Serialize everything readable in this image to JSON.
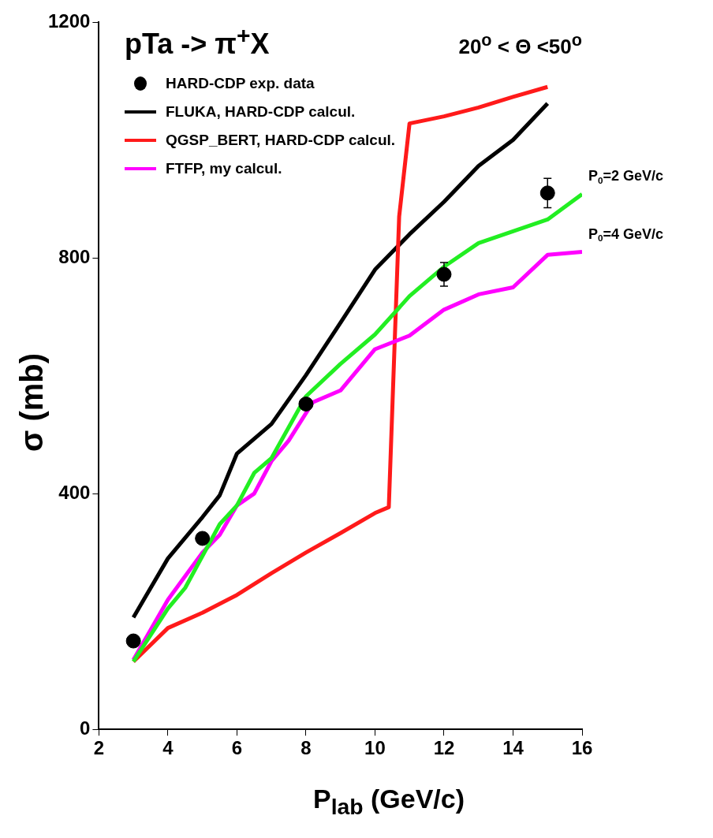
{
  "chart_data": {
    "type": "line",
    "title": "pTa -> π$^{+}$X",
    "subtitle": "20$^{o}$ < Θ <50$^{o}$",
    "xlabel": "P$_{lab}$ (GeV/c)",
    "ylabel": "σ (mb)",
    "xlim": [
      2,
      16
    ],
    "xticks": [
      2,
      4,
      6,
      8,
      10,
      12,
      14,
      16
    ],
    "ylim": [
      0,
      1200
    ],
    "yticks": [
      0,
      400,
      800,
      1200
    ],
    "grid": false,
    "legend": "top left",
    "series": [
      {
        "name": "HARD-CDP exp. data",
        "type": "scatter",
        "marker": "circle",
        "color": "#000000",
        "x": [
          3,
          5,
          8,
          12,
          15
        ],
        "values": [
          150,
          324,
          552,
          772,
          910
        ],
        "errors": [
          null,
          null,
          null,
          20,
          25
        ]
      },
      {
        "name": "FLUKA, HARD-CDP calcul.",
        "color": "#000000",
        "x": [
          3,
          4,
          5,
          5.5,
          6,
          7,
          8,
          9,
          10,
          11,
          12,
          13,
          14,
          15
        ],
        "values": [
          190,
          290,
          360,
          397,
          468,
          518,
          601,
          690,
          780,
          840,
          895,
          956,
          1000,
          1062
        ]
      },
      {
        "name": "QGSP_BERT, HARD-CDP calcul.",
        "color": "#ff1a1a",
        "x": [
          3,
          4,
          5,
          6,
          7,
          8,
          9,
          10,
          10.4,
          10.7,
          11,
          12,
          13,
          14,
          15
        ],
        "values": [
          115,
          172,
          198,
          228,
          265,
          300,
          333,
          367,
          377,
          870,
          1028,
          1040,
          1055,
          1073,
          1090
        ]
      },
      {
        "name": "FTFP, my calcul.",
        "color": "#ff00ff",
        "x": [
          3,
          4,
          5,
          5.5,
          6,
          6.5,
          7,
          7.5,
          8.2,
          9,
          10,
          11,
          12,
          13,
          14,
          15,
          16
        ],
        "values": [
          118,
          220,
          300,
          330,
          380,
          400,
          455,
          490,
          555,
          575,
          645,
          668,
          712,
          738,
          750,
          805,
          810
        ]
      },
      {
        "color": "#22ee22",
        "x": [
          3,
          4,
          4.5,
          5.5,
          6,
          6.5,
          7,
          8,
          9,
          10,
          11,
          12,
          13,
          14,
          15,
          16
        ],
        "values": [
          115,
          205,
          240,
          348,
          380,
          435,
          460,
          565,
          620,
          670,
          735,
          785,
          825,
          845,
          865,
          908
        ]
      }
    ],
    "annotations": [
      {
        "text": "P$_{0}$=2 GeV/c",
        "x": 16,
        "y": 908
      },
      {
        "text": "P$_{0}$=4 GeV/c",
        "x": 16,
        "y": 810
      }
    ]
  }
}
